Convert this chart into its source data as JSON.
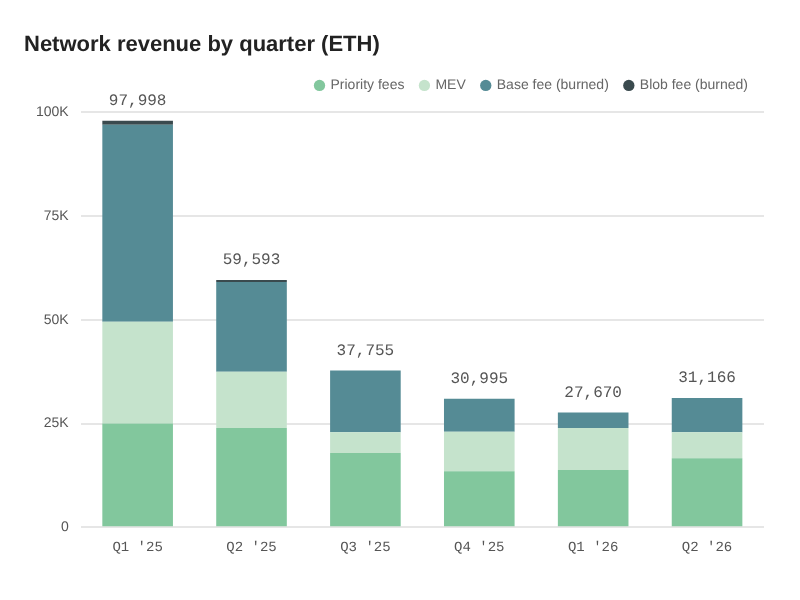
{
  "chart_data": {
    "type": "bar",
    "title": "Network revenue by quarter (ETH)",
    "stacked": true,
    "categories": [
      "Q1 '25",
      "Q2 '25",
      "Q3 '25",
      "Q4 '25",
      "Q1 '26",
      "Q2 '26"
    ],
    "series": [
      {
        "name": "Priority fees",
        "color": "#82c79d",
        "values": [
          25000,
          23900,
          17900,
          13500,
          13800,
          16600
        ]
      },
      {
        "name": "MEV",
        "color": "#c5e3cc",
        "values": [
          24500,
          13600,
          5000,
          9500,
          10100,
          6300
        ]
      },
      {
        "name": "Base fee (burned)",
        "color": "#558b95",
        "values": [
          47498,
          21593,
          14855,
          7995,
          3770,
          8266
        ]
      },
      {
        "name": "Blob fee (burned)",
        "color": "#3a4a4e",
        "values": [
          1000,
          500,
          0,
          0,
          0,
          0
        ]
      }
    ],
    "totals": [
      "97,998",
      "59,593",
      "37,755",
      "30,995",
      "27,670",
      "31,166"
    ],
    "ylim": [
      0,
      100000
    ],
    "yticks": [
      0,
      {
        "value": 25000,
        "label": "25K"
      },
      {
        "value": 50000,
        "label": "50K"
      },
      {
        "value": 75000,
        "label": "75K"
      },
      {
        "value": 100000,
        "label": "100K"
      }
    ],
    "grid": "y",
    "legend": "top right",
    "marker": "circle"
  }
}
